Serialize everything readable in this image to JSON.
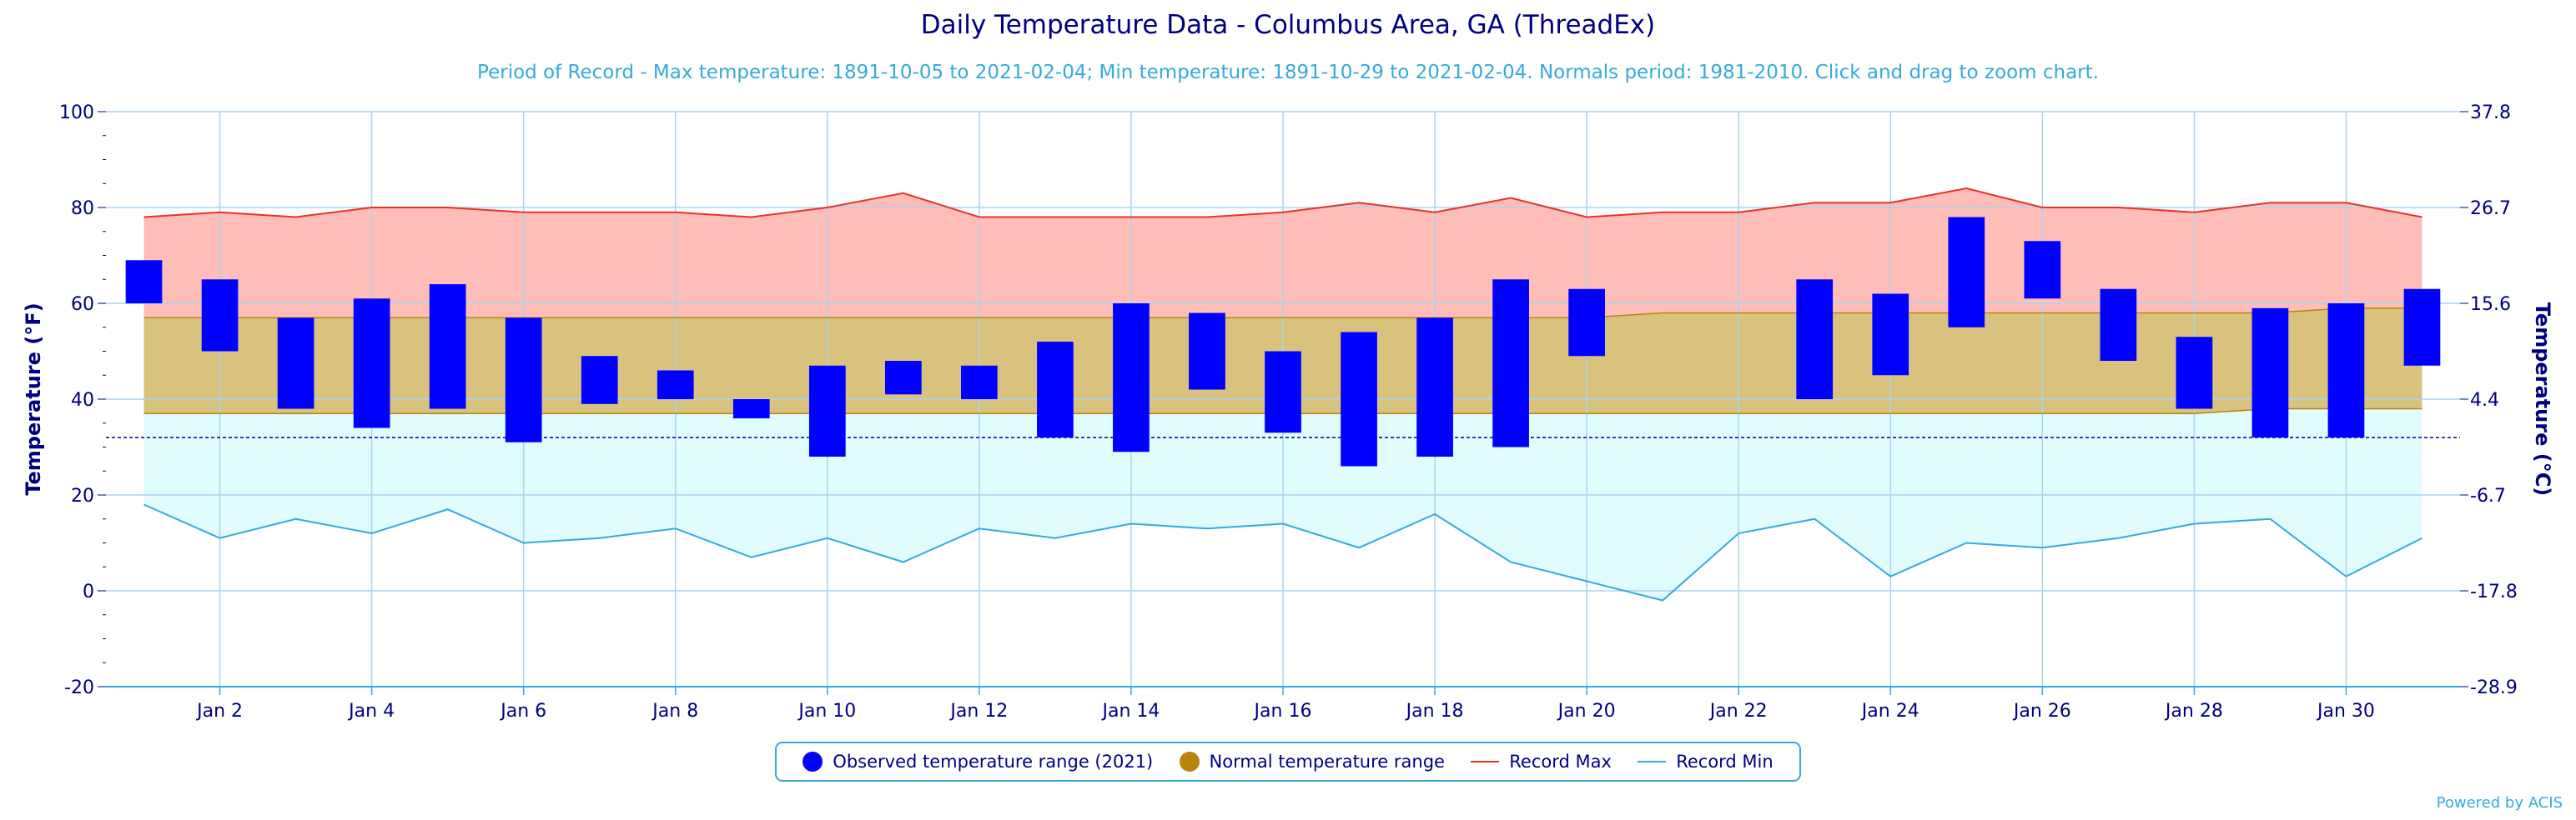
{
  "title": "Daily Temperature Data - Columbus Area, GA (ThreadEx)",
  "subtitle": "Period of Record - Max temperature: 1891-10-05 to 2021-02-04; Min temperature: 1891-10-29 to 2021-02-04. Normals period: 1981-2010. Click and drag to zoom chart.",
  "credit": "Powered by ACIS",
  "colors": {
    "observed": "#0000ff",
    "normal_fill": "#d9c27e",
    "normal_line": "#b8860b",
    "legend_normal_dot": "#b8860b",
    "record_max_fill": "#ffbdb8",
    "record_max_line": "#e8312a",
    "record_min_fill": "#e0fcfc",
    "record_min_line": "#33aadd",
    "axis": "#000080",
    "grid": "#aad4ee"
  },
  "legend": [
    {
      "label": "Observed temperature range (2021)",
      "icon": "dot",
      "color": "#0000ff"
    },
    {
      "label": "Normal temperature range",
      "icon": "dot",
      "color": "#b8860b"
    },
    {
      "label": "Record Max",
      "icon": "line",
      "color": "#e8312a"
    },
    {
      "label": "Record Min",
      "icon": "line",
      "color": "#33aadd"
    }
  ],
  "chart_data": {
    "type": "bar",
    "title": "Daily Temperature Data - Columbus Area, GA (ThreadEx)",
    "ylabel": "Temperature (°F)",
    "y2label": "Temperature (°C)",
    "ylim": [
      -20,
      100
    ],
    "yticks": [
      -20,
      0,
      20,
      40,
      60,
      80,
      100
    ],
    "y2ticks": [
      "37.8",
      "26.7",
      "15.6",
      "4.4",
      "-6.7",
      "-17.8",
      "-28.9"
    ],
    "freezing_line": 32,
    "x_tick_labels": [
      "Jan 2",
      "Jan 4",
      "Jan 6",
      "Jan 8",
      "Jan 10",
      "Jan 12",
      "Jan 14",
      "Jan 16",
      "Jan 18",
      "Jan 20",
      "Jan 22",
      "Jan 24",
      "Jan 26",
      "Jan 28",
      "Jan 30"
    ],
    "x_tick_days": [
      2,
      4,
      6,
      8,
      10,
      12,
      14,
      16,
      18,
      20,
      22,
      24,
      26,
      28,
      30
    ],
    "days": [
      1,
      2,
      3,
      4,
      5,
      6,
      7,
      8,
      9,
      10,
      11,
      12,
      13,
      14,
      15,
      16,
      17,
      18,
      19,
      20,
      21,
      22,
      23,
      24,
      25,
      26,
      27,
      28,
      29,
      30,
      31
    ],
    "series": [
      {
        "name": "Observed temperature range (2021)",
        "kind": "range_bar",
        "low": [
          60,
          50,
          38,
          34,
          38,
          31,
          39,
          40,
          36,
          28,
          41,
          40,
          32,
          29,
          42,
          33,
          26,
          28,
          30,
          49,
          null,
          null,
          40,
          45,
          55,
          61,
          48,
          38,
          32,
          32,
          47
        ],
        "high": [
          69,
          65,
          57,
          61,
          64,
          57,
          49,
          46,
          40,
          47,
          48,
          47,
          52,
          60,
          58,
          50,
          54,
          57,
          65,
          63,
          null,
          null,
          65,
          62,
          78,
          73,
          63,
          53,
          59,
          60,
          63
        ]
      },
      {
        "name": "Normal temperature range",
        "kind": "range_area",
        "low": [
          37,
          37,
          37,
          37,
          37,
          37,
          37,
          37,
          37,
          37,
          37,
          37,
          37,
          37,
          37,
          37,
          37,
          37,
          37,
          37,
          37,
          37,
          37,
          37,
          37,
          37,
          37,
          37,
          38,
          38,
          38
        ],
        "high": [
          57,
          57,
          57,
          57,
          57,
          57,
          57,
          57,
          57,
          57,
          57,
          57,
          57,
          57,
          57,
          57,
          57,
          57,
          57,
          57,
          58,
          58,
          58,
          58,
          58,
          58,
          58,
          58,
          58,
          59,
          59
        ]
      },
      {
        "name": "Record Max",
        "kind": "line",
        "values": [
          78,
          79,
          78,
          80,
          80,
          79,
          79,
          79,
          78,
          80,
          83,
          78,
          78,
          78,
          78,
          79,
          81,
          79,
          82,
          78,
          79,
          79,
          81,
          81,
          84,
          80,
          80,
          79,
          81,
          81,
          78
        ]
      },
      {
        "name": "Record Min",
        "kind": "line",
        "values": [
          18,
          11,
          15,
          12,
          17,
          10,
          11,
          13,
          7,
          11,
          6,
          13,
          11,
          14,
          13,
          14,
          9,
          16,
          6,
          2,
          -2,
          12,
          15,
          3,
          10,
          9,
          11,
          14,
          15,
          3,
          11
        ]
      }
    ]
  }
}
